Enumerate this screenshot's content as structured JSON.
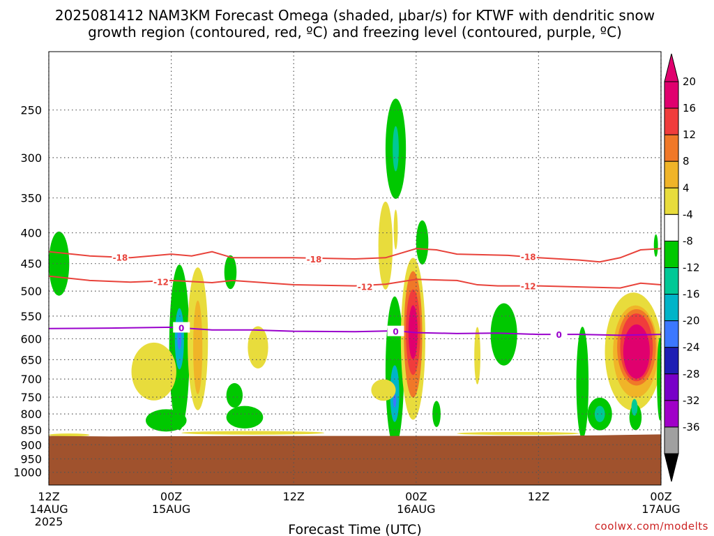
{
  "title": {
    "line1": "2025081412 NAM3KM Forecast Omega (shaded, μbar/s) for KTWF with dendritic snow",
    "line2": "growth region (contoured, red, ºC) and freezing level (contoured, purple, ºC)"
  },
  "credit": "coolwx.com/modelts",
  "colors": {
    "terrain": "#a0522d",
    "red_contour": "#e8423a",
    "purple_contour": "#9900cc",
    "grid": "#555555"
  },
  "chart_data": {
    "type": "heatmap",
    "title": "2025081412 NAM3KM Forecast Omega (shaded, μbar/s) for KTWF with dendritic snow growth region (contoured, red, ºC) and freezing level (contoured, purple, ºC)",
    "xlabel": "Forecast Time (UTC)",
    "ylabel": "",
    "x_range_hours": [
      0,
      60
    ],
    "ylim_hpa": [
      1050,
      200
    ],
    "y_scale": "log-pressure",
    "grid": true,
    "y_ticks": [
      250,
      300,
      350,
      400,
      450,
      500,
      550,
      600,
      650,
      700,
      750,
      800,
      850,
      900,
      950,
      1000
    ],
    "x_ticks": [
      {
        "hour": 0,
        "line1": "12Z",
        "line2": "14AUG",
        "line3": "2025"
      },
      {
        "hour": 12,
        "line1": "00Z",
        "line2": "15AUG",
        "line3": ""
      },
      {
        "hour": 24,
        "line1": "12Z",
        "line2": "",
        "line3": ""
      },
      {
        "hour": 36,
        "line1": "00Z",
        "line2": "16AUG",
        "line3": ""
      },
      {
        "hour": 48,
        "line1": "12Z",
        "line2": "",
        "line3": ""
      },
      {
        "hour": 60,
        "line1": "00Z",
        "line2": "17AUG",
        "line3": ""
      }
    ],
    "colorbar": {
      "label_values": [
        "20",
        "16",
        "12",
        "8",
        "4",
        "-4",
        "-8",
        "-12",
        "-16",
        "-20",
        "-24",
        "-28",
        "-32",
        "-36"
      ],
      "bins": [
        {
          "color": "#e0006e"
        },
        {
          "color": "#f03c3c"
        },
        {
          "color": "#f07828"
        },
        {
          "color": "#f0b428"
        },
        {
          "color": "#e8dc3c"
        },
        {
          "color": "#ffffff"
        },
        {
          "color": "#00c800"
        },
        {
          "color": "#00c896"
        },
        {
          "color": "#00b4c8"
        },
        {
          "color": "#3c78ff"
        },
        {
          "color": "#1e1eb4"
        },
        {
          "color": "#7800c8"
        },
        {
          "color": "#a000c8"
        },
        {
          "color": "#a0a0a0"
        }
      ],
      "top_arrow_color": "#e0006e",
      "bottom_arrow_color": "#000000"
    },
    "contours": [
      {
        "name": "-18",
        "color": "#e8423a",
        "points": [
          [
            0,
            430
          ],
          [
            4,
            437
          ],
          [
            8,
            440
          ],
          [
            12,
            434
          ],
          [
            14,
            437
          ],
          [
            16,
            430
          ],
          [
            18,
            440
          ],
          [
            24,
            440
          ],
          [
            30,
            442
          ],
          [
            33,
            440
          ],
          [
            36,
            425
          ],
          [
            38,
            427
          ],
          [
            40,
            434
          ],
          [
            45,
            436
          ],
          [
            48,
            440
          ],
          [
            52,
            444
          ],
          [
            54,
            447
          ],
          [
            56,
            440
          ],
          [
            58,
            427
          ],
          [
            60,
            425
          ]
        ],
        "labels": [
          [
            7,
            439
          ],
          [
            26,
            442
          ],
          [
            47,
            438
          ]
        ]
      },
      {
        "name": "-12",
        "color": "#e8423a",
        "points": [
          [
            0,
            472
          ],
          [
            4,
            480
          ],
          [
            8,
            483
          ],
          [
            12,
            480
          ],
          [
            16,
            484
          ],
          [
            18,
            480
          ],
          [
            24,
            488
          ],
          [
            30,
            490
          ],
          [
            33,
            487
          ],
          [
            36,
            478
          ],
          [
            40,
            480
          ],
          [
            42,
            488
          ],
          [
            44,
            490
          ],
          [
            48,
            490
          ],
          [
            52,
            492
          ],
          [
            56,
            494
          ],
          [
            58,
            485
          ],
          [
            60,
            488
          ]
        ],
        "labels": [
          [
            11,
            482
          ],
          [
            31,
            491
          ],
          [
            47,
            490
          ]
        ]
      },
      {
        "name": "0",
        "color": "#9900cc",
        "points": [
          [
            0,
            577
          ],
          [
            6,
            576
          ],
          [
            12,
            574
          ],
          [
            16,
            580
          ],
          [
            20,
            580
          ],
          [
            24,
            583
          ],
          [
            30,
            584
          ],
          [
            34,
            582
          ],
          [
            36,
            586
          ],
          [
            40,
            588
          ],
          [
            44,
            587
          ],
          [
            48,
            590
          ],
          [
            52,
            590
          ],
          [
            56,
            592
          ],
          [
            60,
            590
          ]
        ],
        "labels": [
          [
            13,
            575
          ],
          [
            34,
            583
          ],
          [
            50,
            590
          ]
        ]
      }
    ],
    "terrain_top_hpa": [
      [
        0,
        870
      ],
      [
        6,
        872
      ],
      [
        12,
        871
      ],
      [
        24,
        870
      ],
      [
        36,
        870
      ],
      [
        48,
        870
      ],
      [
        54,
        868
      ],
      [
        60,
        865
      ]
    ],
    "omega_regions": [
      {
        "color": "#00c800",
        "cx": 1.0,
        "p": 450,
        "rx": 1.0,
        "rp": 55
      },
      {
        "color": "#00c800",
        "cx": 12.8,
        "p": 620,
        "rx": 1.0,
        "rp": 190
      },
      {
        "color": "#00b4c8",
        "cx": 12.8,
        "p": 600,
        "rx": 0.45,
        "rp": 70
      },
      {
        "color": "#3c78ff",
        "cx": 12.8,
        "p": 600,
        "rx": 0.2,
        "rp": 25
      },
      {
        "color": "#00c800",
        "cx": 11.5,
        "p": 820,
        "rx": 2.0,
        "rp": 35
      },
      {
        "color": "#e8dc3c",
        "cx": 14.6,
        "p": 600,
        "rx": 1.0,
        "rp": 160
      },
      {
        "color": "#f0b428",
        "cx": 14.6,
        "p": 620,
        "rx": 0.45,
        "rp": 110
      },
      {
        "color": "#e8dc3c",
        "cx": 10.3,
        "p": 680,
        "rx": 2.2,
        "rp": 75
      },
      {
        "color": "#e8dc3c",
        "cx": 20.5,
        "p": 620,
        "rx": 1.0,
        "rp": 50
      },
      {
        "color": "#00c800",
        "cx": 17.8,
        "p": 465,
        "rx": 0.6,
        "rp": 30
      },
      {
        "color": "#00c800",
        "cx": 18.2,
        "p": 745,
        "rx": 0.8,
        "rp": 35
      },
      {
        "color": "#00c800",
        "cx": 19.2,
        "p": 810,
        "rx": 1.8,
        "rp": 35
      },
      {
        "color": "#00c800",
        "cx": 34.0,
        "p": 290,
        "rx": 1.0,
        "rp": 55
      },
      {
        "color": "#00c896",
        "cx": 34.0,
        "p": 290,
        "rx": 0.3,
        "rp": 25
      },
      {
        "color": "#e8dc3c",
        "cx": 33.0,
        "p": 420,
        "rx": 0.7,
        "rp": 70
      },
      {
        "color": "#e8dc3c",
        "cx": 34.0,
        "p": 395,
        "rx": 0.2,
        "rp": 30
      },
      {
        "color": "#00c800",
        "cx": 33.9,
        "p": 680,
        "rx": 0.9,
        "rp": 190
      },
      {
        "color": "#00b4c8",
        "cx": 33.9,
        "p": 740,
        "rx": 0.45,
        "rp": 80
      },
      {
        "color": "#3c78ff",
        "cx": 33.9,
        "p": 760,
        "rx": 0.15,
        "rp": 20
      },
      {
        "color": "#e8dc3c",
        "cx": 32.8,
        "p": 730,
        "rx": 1.2,
        "rp": 30
      },
      {
        "color": "#e8dc3c",
        "cx": 35.7,
        "p": 600,
        "rx": 1.2,
        "rp": 180
      },
      {
        "color": "#f07828",
        "cx": 35.7,
        "p": 590,
        "rx": 0.9,
        "rp": 140
      },
      {
        "color": "#f03c3c",
        "cx": 35.7,
        "p": 585,
        "rx": 0.7,
        "rp": 95
      },
      {
        "color": "#e0006e",
        "cx": 35.7,
        "p": 585,
        "rx": 0.45,
        "rp": 60
      },
      {
        "color": "#00c800",
        "cx": 36.6,
        "p": 415,
        "rx": 0.6,
        "rp": 35
      },
      {
        "color": "#00c800",
        "cx": 38.0,
        "p": 800,
        "rx": 0.4,
        "rp": 40
      },
      {
        "color": "#e8dc3c",
        "cx": 42.0,
        "p": 640,
        "rx": 0.3,
        "rp": 70
      },
      {
        "color": "#00c800",
        "cx": 44.6,
        "p": 590,
        "rx": 1.3,
        "rp": 70
      },
      {
        "color": "#00c800",
        "cx": 54.0,
        "p": 800,
        "rx": 1.2,
        "rp": 50
      },
      {
        "color": "#00c896",
        "cx": 54.0,
        "p": 800,
        "rx": 0.5,
        "rp": 25
      },
      {
        "color": "#00c800",
        "cx": 52.3,
        "p": 710,
        "rx": 0.6,
        "rp": 150
      },
      {
        "color": "#e8dc3c",
        "cx": 57.3,
        "p": 630,
        "rx": 2.8,
        "rp": 140
      },
      {
        "color": "#f0b428",
        "cx": 57.5,
        "p": 630,
        "rx": 2.2,
        "rp": 110
      },
      {
        "color": "#f07828",
        "cx": 57.6,
        "p": 620,
        "rx": 1.9,
        "rp": 90
      },
      {
        "color": "#f03c3c",
        "cx": 57.6,
        "p": 620,
        "rx": 1.6,
        "rp": 80
      },
      {
        "color": "#e0006e",
        "cx": 57.6,
        "p": 630,
        "rx": 1.3,
        "rp": 65
      },
      {
        "color": "#00c800",
        "cx": 57.5,
        "p": 810,
        "rx": 0.6,
        "rp": 40
      },
      {
        "color": "#00c896",
        "cx": 57.4,
        "p": 780,
        "rx": 0.3,
        "rp": 25
      },
      {
        "color": "#00c800",
        "cx": 59.5,
        "p": 420,
        "rx": 0.2,
        "rp": 18
      },
      {
        "color": "#00c800",
        "cx": 59.9,
        "p": 700,
        "rx": 0.3,
        "rp": 110
      },
      {
        "color": "#e8dc3c",
        "cx": 2,
        "p": 867,
        "rx": 2,
        "rp": 5
      },
      {
        "color": "#e8dc3c",
        "cx": 20,
        "p": 860,
        "rx": 7,
        "rp": 6
      },
      {
        "color": "#e8dc3c",
        "cx": 46,
        "p": 862,
        "rx": 6,
        "rp": 5
      }
    ]
  }
}
